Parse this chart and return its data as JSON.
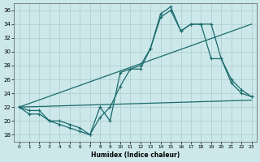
{
  "xlabel": "Humidex (Indice chaleur)",
  "xlim": [
    -0.5,
    23.5
  ],
  "ylim": [
    17,
    37
  ],
  "yticks": [
    18,
    20,
    22,
    24,
    26,
    28,
    30,
    32,
    34,
    36
  ],
  "xticks": [
    0,
    1,
    2,
    3,
    4,
    5,
    6,
    7,
    8,
    9,
    10,
    11,
    12,
    13,
    14,
    15,
    16,
    17,
    18,
    19,
    20,
    21,
    22,
    23
  ],
  "bg_color": "#cce8ea",
  "grid_color": "#aacccc",
  "line_color": "#1a6b6b",
  "line1_x": [
    0,
    1,
    2,
    3,
    4,
    5,
    6,
    7,
    8,
    9,
    10,
    11,
    12,
    13,
    14,
    15,
    16,
    17,
    18,
    19,
    20,
    21,
    22,
    23
  ],
  "line1_y": [
    22,
    21,
    21,
    20,
    19.5,
    19,
    18.5,
    18,
    22,
    20,
    27,
    27.5,
    28,
    30.5,
    35.5,
    36.5,
    33,
    34,
    34,
    34,
    29,
    25.5,
    24,
    23.5
  ],
  "line2_x": [
    0,
    1,
    2,
    3,
    4,
    5,
    6,
    7,
    8,
    9,
    10,
    11,
    12,
    13,
    14,
    15,
    16,
    17,
    18,
    19,
    20,
    21,
    22,
    23
  ],
  "line2_y": [
    22,
    21.5,
    21.5,
    20,
    20,
    19.5,
    19,
    18,
    20.5,
    22,
    25,
    27.5,
    27.5,
    30.5,
    35,
    36,
    33,
    34,
    34,
    29,
    29,
    26,
    24.5,
    23.5
  ],
  "line3_x": [
    0,
    23
  ],
  "line3_y": [
    22,
    34
  ],
  "line4_x": [
    0,
    23
  ],
  "line4_y": [
    22,
    23
  ]
}
